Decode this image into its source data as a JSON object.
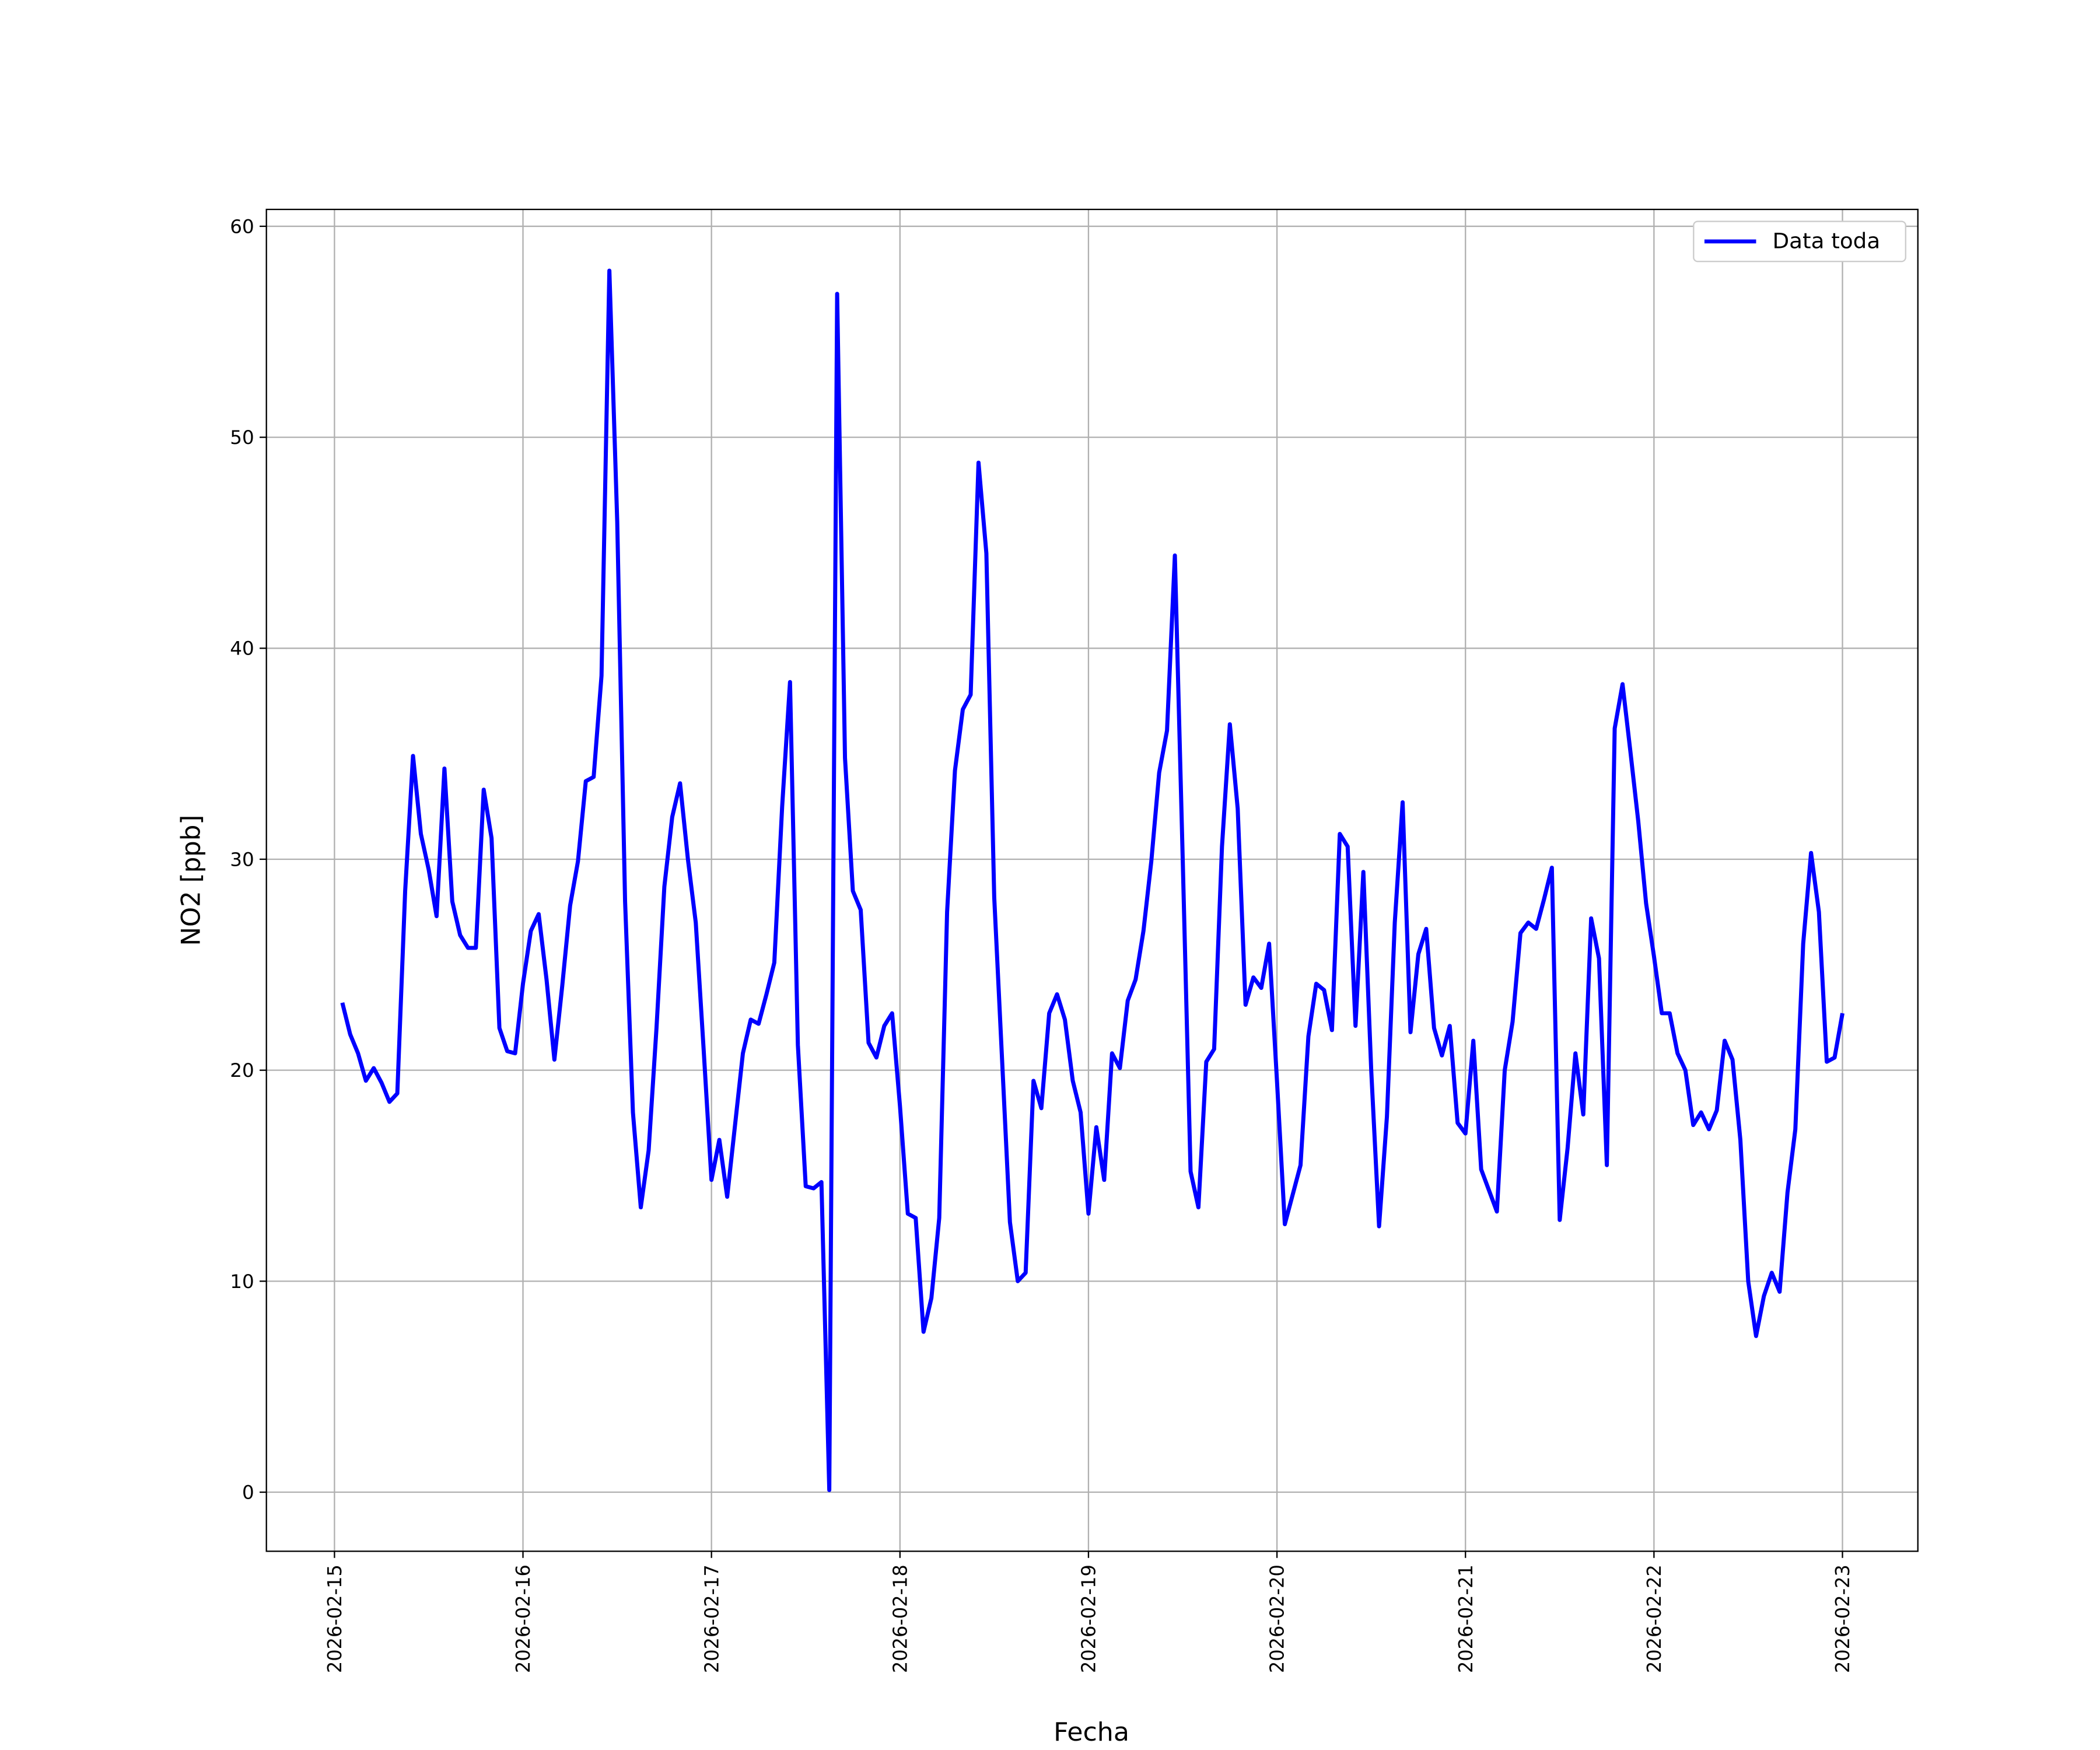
{
  "chart_data": {
    "type": "line",
    "xlabel": "Fecha",
    "ylabel": "NO2 [ppb]",
    "xlim": [
      "2026-02-14T15:20",
      "2026-02-23T09:36"
    ],
    "xticks": [
      "2026-02-15",
      "2026-02-16",
      "2026-02-17",
      "2026-02-18",
      "2026-02-19",
      "2026-02-20",
      "2026-02-21",
      "2026-02-22",
      "2026-02-23"
    ],
    "ylim": [
      -2.8,
      60.8
    ],
    "yticks": [
      0,
      10,
      20,
      30,
      40,
      50,
      60
    ],
    "grid": true,
    "legend": "upper right",
    "x": [
      "2026-02-15T01:00",
      "2026-02-15T02:00",
      "2026-02-15T03:00",
      "2026-02-15T04:00",
      "2026-02-15T05:00",
      "2026-02-15T06:00",
      "2026-02-15T07:00",
      "2026-02-15T08:00",
      "2026-02-15T09:00",
      "2026-02-15T10:00",
      "2026-02-15T11:00",
      "2026-02-15T12:00",
      "2026-02-15T13:00",
      "2026-02-15T14:00",
      "2026-02-15T15:00",
      "2026-02-15T16:00",
      "2026-02-15T17:00",
      "2026-02-15T18:00",
      "2026-02-15T19:00",
      "2026-02-15T20:00",
      "2026-02-15T21:00",
      "2026-02-15T22:00",
      "2026-02-15T23:00",
      "2026-02-16T00:00",
      "2026-02-16T01:00",
      "2026-02-16T02:00",
      "2026-02-16T03:00",
      "2026-02-16T04:00",
      "2026-02-16T05:00",
      "2026-02-16T06:00",
      "2026-02-16T07:00",
      "2026-02-16T08:00",
      "2026-02-16T09:00",
      "2026-02-16T10:00",
      "2026-02-16T11:00",
      "2026-02-16T12:00",
      "2026-02-16T13:00",
      "2026-02-16T14:00",
      "2026-02-16T15:00",
      "2026-02-16T16:00",
      "2026-02-16T17:00",
      "2026-02-16T18:00",
      "2026-02-16T19:00",
      "2026-02-16T20:00",
      "2026-02-16T21:00",
      "2026-02-16T22:00",
      "2026-02-16T23:00",
      "2026-02-17T00:00",
      "2026-02-17T01:00",
      "2026-02-17T02:00",
      "2026-02-17T03:00",
      "2026-02-17T04:00",
      "2026-02-17T05:00",
      "2026-02-17T06:00",
      "2026-02-17T07:00",
      "2026-02-17T08:00",
      "2026-02-17T09:00",
      "2026-02-17T10:00",
      "2026-02-17T11:00",
      "2026-02-17T12:00",
      "2026-02-17T13:00",
      "2026-02-17T14:00",
      "2026-02-17T15:00",
      "2026-02-17T16:00",
      "2026-02-17T17:00",
      "2026-02-17T18:00",
      "2026-02-17T19:00",
      "2026-02-17T20:00",
      "2026-02-17T21:00",
      "2026-02-17T22:00",
      "2026-02-17T23:00",
      "2026-02-18T00:00",
      "2026-02-18T01:00",
      "2026-02-18T02:00",
      "2026-02-18T03:00",
      "2026-02-18T04:00",
      "2026-02-18T05:00",
      "2026-02-18T06:00",
      "2026-02-18T07:00",
      "2026-02-18T08:00",
      "2026-02-18T09:00",
      "2026-02-18T10:00",
      "2026-02-18T11:00",
      "2026-02-18T12:00",
      "2026-02-18T13:00",
      "2026-02-18T14:00",
      "2026-02-18T15:00",
      "2026-02-18T16:00",
      "2026-02-18T17:00",
      "2026-02-18T18:00",
      "2026-02-18T19:00",
      "2026-02-18T20:00",
      "2026-02-18T21:00",
      "2026-02-18T22:00",
      "2026-02-18T23:00",
      "2026-02-19T00:00",
      "2026-02-19T01:00",
      "2026-02-19T02:00",
      "2026-02-19T03:00",
      "2026-02-19T04:00",
      "2026-02-19T05:00",
      "2026-02-19T06:00",
      "2026-02-19T07:00",
      "2026-02-19T08:00",
      "2026-02-19T09:00",
      "2026-02-19T10:00",
      "2026-02-19T11:00",
      "2026-02-19T12:00",
      "2026-02-19T13:00",
      "2026-02-19T14:00",
      "2026-02-19T15:00",
      "2026-02-19T16:00",
      "2026-02-19T17:00",
      "2026-02-19T18:00",
      "2026-02-19T19:00",
      "2026-02-19T20:00",
      "2026-02-19T21:00",
      "2026-02-19T22:00",
      "2026-02-19T23:00",
      "2026-02-20T00:00",
      "2026-02-20T01:00",
      "2026-02-20T02:00",
      "2026-02-20T03:00",
      "2026-02-20T04:00",
      "2026-02-20T05:00",
      "2026-02-20T06:00",
      "2026-02-20T07:00",
      "2026-02-20T08:00",
      "2026-02-20T09:00",
      "2026-02-20T10:00",
      "2026-02-20T11:00",
      "2026-02-20T12:00",
      "2026-02-20T13:00",
      "2026-02-20T14:00",
      "2026-02-20T15:00",
      "2026-02-20T16:00",
      "2026-02-20T17:00",
      "2026-02-20T18:00",
      "2026-02-20T19:00",
      "2026-02-20T20:00",
      "2026-02-20T21:00",
      "2026-02-20T22:00",
      "2026-02-20T23:00",
      "2026-02-21T00:00",
      "2026-02-21T01:00",
      "2026-02-21T02:00",
      "2026-02-21T03:00",
      "2026-02-21T04:00",
      "2026-02-21T05:00",
      "2026-02-21T06:00",
      "2026-02-21T07:00",
      "2026-02-21T08:00",
      "2026-02-21T09:00",
      "2026-02-21T10:00",
      "2026-02-21T11:00",
      "2026-02-21T12:00",
      "2026-02-21T13:00",
      "2026-02-21T14:00",
      "2026-02-21T15:00",
      "2026-02-21T16:00",
      "2026-02-21T17:00",
      "2026-02-21T18:00",
      "2026-02-21T19:00",
      "2026-02-21T20:00",
      "2026-02-21T21:00",
      "2026-02-21T22:00",
      "2026-02-21T23:00",
      "2026-02-22T00:00",
      "2026-02-22T01:00",
      "2026-02-22T02:00",
      "2026-02-22T03:00",
      "2026-02-22T04:00",
      "2026-02-22T05:00",
      "2026-02-22T06:00",
      "2026-02-22T07:00",
      "2026-02-22T08:00",
      "2026-02-22T09:00",
      "2026-02-22T10:00",
      "2026-02-22T11:00",
      "2026-02-22T12:00",
      "2026-02-22T13:00",
      "2026-02-22T14:00",
      "2026-02-22T15:00",
      "2026-02-22T16:00",
      "2026-02-22T17:00",
      "2026-02-22T18:00",
      "2026-02-22T19:00",
      "2026-02-22T20:00",
      "2026-02-22T21:00",
      "2026-02-22T22:00",
      "2026-02-22T23:00",
      "2026-02-23T00:00"
    ],
    "series": [
      {
        "name": "Data toda",
        "color": "#0000ff",
        "values": [
          23.2,
          21.7,
          20.8,
          19.5,
          20.1,
          19.4,
          18.5,
          18.9,
          28.5,
          34.9,
          31.2,
          29.5,
          27.3,
          34.3,
          28.0,
          26.4,
          25.8,
          25.8,
          33.3,
          31.0,
          22.0,
          20.9,
          20.8,
          24.1,
          26.6,
          27.4,
          24.3,
          20.5,
          24.0,
          27.8,
          29.9,
          33.7,
          33.9,
          38.7,
          57.9,
          46.0,
          28.0,
          18.0,
          13.5,
          16.2,
          22.0,
          28.7,
          32.0,
          33.6,
          30.0,
          27.0,
          21.0,
          14.8,
          16.7,
          14.0,
          17.4,
          20.8,
          22.4,
          22.2,
          23.6,
          25.1,
          32.5,
          38.4,
          21.2,
          14.5,
          14.4,
          14.7,
          0.1,
          56.8,
          34.8,
          28.5,
          27.6,
          21.3,
          20.6,
          22.1,
          22.7,
          18.3,
          13.2,
          13.0,
          7.6,
          9.2,
          13.0,
          27.5,
          34.2,
          37.1,
          37.8,
          48.8,
          44.5,
          28.2,
          20.5,
          12.8,
          10.0,
          10.4,
          19.5,
          18.2,
          22.7,
          23.6,
          22.4,
          19.5,
          18.0,
          13.2,
          17.3,
          14.8,
          20.8,
          20.1,
          23.3,
          24.3,
          26.6,
          29.9,
          34.1,
          36.1,
          44.4,
          30.0,
          15.2,
          13.5,
          20.4,
          21.0,
          30.6,
          36.4,
          32.4,
          23.1,
          24.4,
          23.9,
          26.0,
          19.5,
          12.7,
          14.1,
          15.5,
          21.6,
          24.1,
          23.8,
          21.9,
          31.2,
          30.6,
          22.1,
          29.4,
          20.0,
          12.6,
          17.8,
          27.0,
          32.7,
          21.8,
          25.5,
          26.7,
          22.0,
          20.7,
          22.1,
          17.5,
          17.0,
          21.4,
          15.3,
          14.3,
          13.3,
          20.0,
          22.3,
          26.5,
          27.0,
          26.7,
          28.1,
          29.6,
          12.9,
          16.3,
          20.8,
          17.9,
          27.2,
          25.3,
          15.5,
          36.2,
          38.3,
          35.1,
          31.8,
          27.9,
          25.4,
          22.7,
          22.7,
          20.8,
          20.0,
          17.4,
          18.0,
          17.2,
          18.1,
          21.4,
          20.5,
          16.7,
          10.0,
          7.4,
          9.3,
          10.4,
          9.5,
          14.2,
          17.2,
          26.0,
          30.3,
          27.5,
          20.4,
          20.6,
          22.7
        ]
      }
    ]
  }
}
